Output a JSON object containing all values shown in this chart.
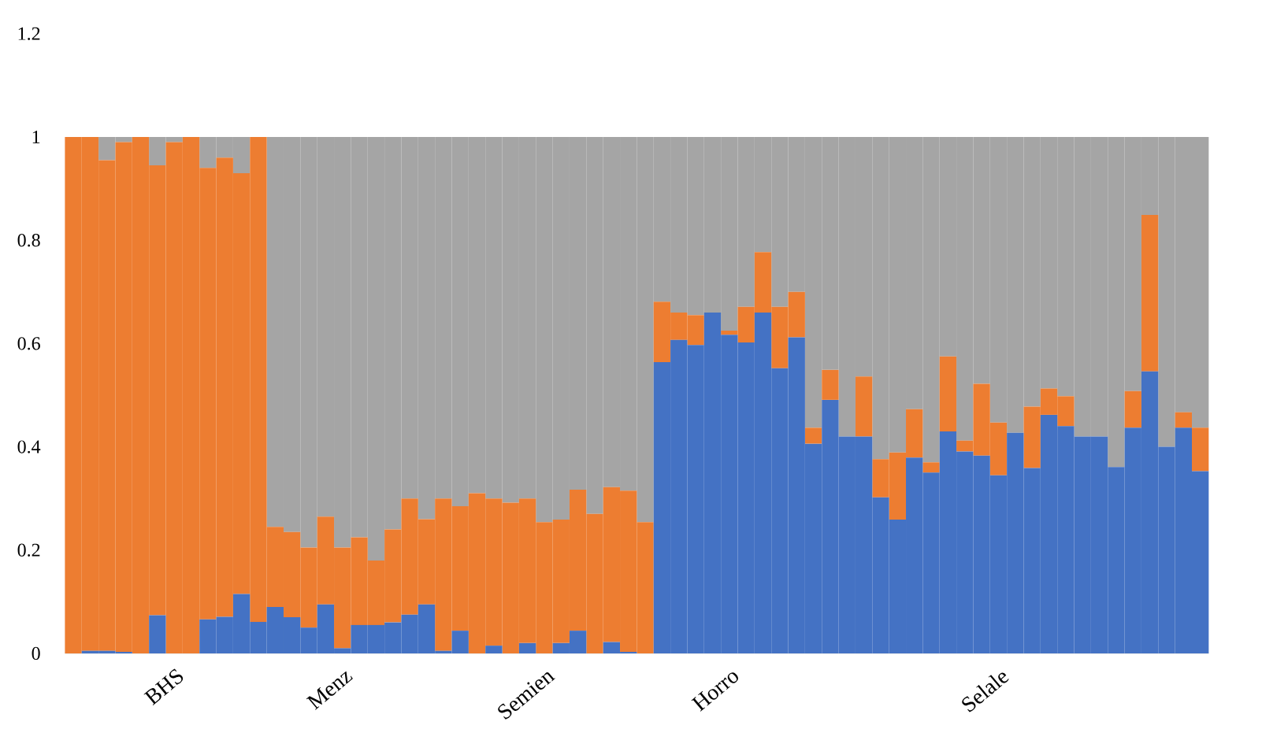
{
  "chart_data": {
    "type": "bar",
    "stacked": true,
    "categories": [
      null,
      null,
      null,
      null,
      null,
      null,
      "BHS",
      null,
      null,
      null,
      null,
      null,
      null,
      null,
      null,
      null,
      "Menz",
      null,
      null,
      null,
      null,
      null,
      null,
      null,
      null,
      null,
      null,
      null,
      "Semien",
      null,
      null,
      null,
      null,
      null,
      null,
      null,
      null,
      null,
      null,
      "Horro",
      null,
      null,
      null,
      null,
      null,
      null,
      null,
      null,
      null,
      null,
      null,
      null,
      null,
      null,
      null,
      "Selale",
      null,
      null,
      null,
      null,
      null,
      null,
      null,
      null,
      null,
      null,
      null,
      null
    ],
    "series": [
      {
        "color": "#4472c4",
        "values": [
          0,
          0.005,
          0.005,
          0.003,
          0,
          0.074,
          0,
          0,
          0.066,
          0.071,
          0.115,
          0.061,
          0.09,
          0.07,
          0.05,
          0.095,
          0.01,
          0.055,
          0.055,
          0.06,
          0.075,
          0.095,
          0.005,
          0.044,
          0,
          0.015,
          0,
          0.02,
          0,
          0.02,
          0.044,
          0,
          0.022,
          0.003,
          0,
          0.564,
          0.607,
          0.597,
          0.66,
          0.617,
          0.602,
          0.66,
          0.552,
          0.612,
          0.406,
          0.491,
          0.42,
          0.42,
          0.302,
          0.259,
          0.379,
          0.35,
          0.43,
          0.391,
          0.383,
          0.345,
          0.427,
          0.359,
          0.462,
          0.44,
          0.42,
          0.42,
          0.361,
          0.437,
          0.546,
          0.4,
          0.437,
          0.353
        ]
      },
      {
        "color": "#ed7d31",
        "values": [
          1,
          0.995,
          0.95,
          0.987,
          1,
          0.871,
          0.99,
          1,
          0.874,
          0.889,
          0.815,
          0.939,
          0.155,
          0.165,
          0.155,
          0.17,
          0.195,
          0.17,
          0.125,
          0.18,
          0.225,
          0.165,
          0.295,
          0.241,
          0.31,
          0.285,
          0.292,
          0.28,
          0.254,
          0.239,
          0.273,
          0.27,
          0.3,
          0.312,
          0.254,
          0.117,
          0.053,
          0.058,
          0,
          0.008,
          0.069,
          0.117,
          0.119,
          0.088,
          0.031,
          0.058,
          0,
          0.116,
          0.074,
          0.13,
          0.094,
          0.02,
          0.145,
          0.021,
          0.139,
          0.102,
          0,
          0.119,
          0.051,
          0.058,
          0,
          0,
          0,
          0.071,
          0.303,
          0,
          0.03,
          0.084
        ]
      },
      {
        "color": "#a5a5a5",
        "values": [
          0,
          0,
          0.045,
          0.01,
          0,
          0.055,
          0.01,
          0,
          0.06,
          0.04,
          0.07,
          0,
          0.755,
          0.765,
          0.795,
          0.735,
          0.795,
          0.775,
          0.82,
          0.76,
          0.7,
          0.74,
          0.7,
          0.715,
          0.69,
          0.7,
          0.708,
          0.7,
          0.746,
          0.741,
          0.683,
          0.73,
          0.678,
          0.685,
          0.746,
          0.319,
          0.34,
          0.345,
          0.34,
          0.375,
          0.329,
          0.223,
          0.329,
          0.3,
          0.563,
          0.451,
          0.58,
          0.464,
          0.624,
          0.611,
          0.527,
          0.63,
          0.425,
          0.588,
          0.478,
          0.553,
          0.573,
          0.522,
          0.487,
          0.502,
          0.58,
          0.58,
          0.639,
          0.492,
          0.151,
          0.6,
          0.533,
          0.563
        ]
      }
    ],
    "ylim": [
      0,
      1.2
    ],
    "yticks": [
      0,
      0.2,
      0.4,
      0.6,
      0.8,
      1,
      1.2
    ]
  }
}
